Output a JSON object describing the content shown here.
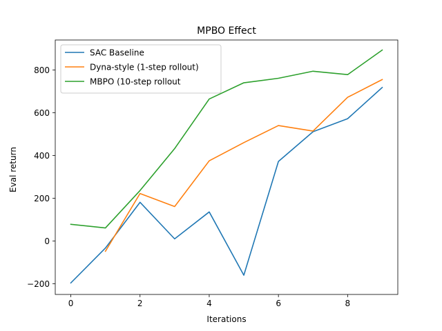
{
  "chart_data": {
    "type": "line",
    "title": "MPBO Effect",
    "xlabel": "Iterations",
    "ylabel": "Eval return",
    "xlim": [
      -0.45,
      9.45
    ],
    "ylim": [
      -250,
      940
    ],
    "xticks": [
      0,
      2,
      4,
      6,
      8
    ],
    "yticks": [
      -200,
      0,
      200,
      400,
      600,
      800
    ],
    "xtick_labels": [
      "0",
      "2",
      "4",
      "6",
      "8"
    ],
    "ytick_labels": [
      "−200",
      "0",
      "200",
      "400",
      "600",
      "800"
    ],
    "grid": false,
    "legend_position": "upper-left",
    "series": [
      {
        "name": "SAC Baseline",
        "color": "#1f77b4",
        "x": [
          0,
          1,
          2,
          3,
          4,
          5,
          6,
          7,
          8,
          9
        ],
        "y": [
          -196,
          -33,
          181,
          10,
          136,
          -160,
          372,
          511,
          572,
          718
        ]
      },
      {
        "name": "Dyna-style (1-step rollout)",
        "color": "#ff7f0e",
        "x": [
          1,
          2,
          3,
          4,
          5,
          6,
          7,
          8,
          9
        ],
        "y": [
          -48,
          222,
          161,
          375,
          460,
          540,
          514,
          672,
          755
        ]
      },
      {
        "name": "MBPO (10-step rollout",
        "color": "#2ca02c",
        "x": [
          0,
          1,
          2,
          3,
          4,
          5,
          6,
          7,
          8,
          9
        ],
        "y": [
          78,
          61,
          236,
          432,
          664,
          740,
          761,
          794,
          778,
          893
        ]
      }
    ]
  }
}
